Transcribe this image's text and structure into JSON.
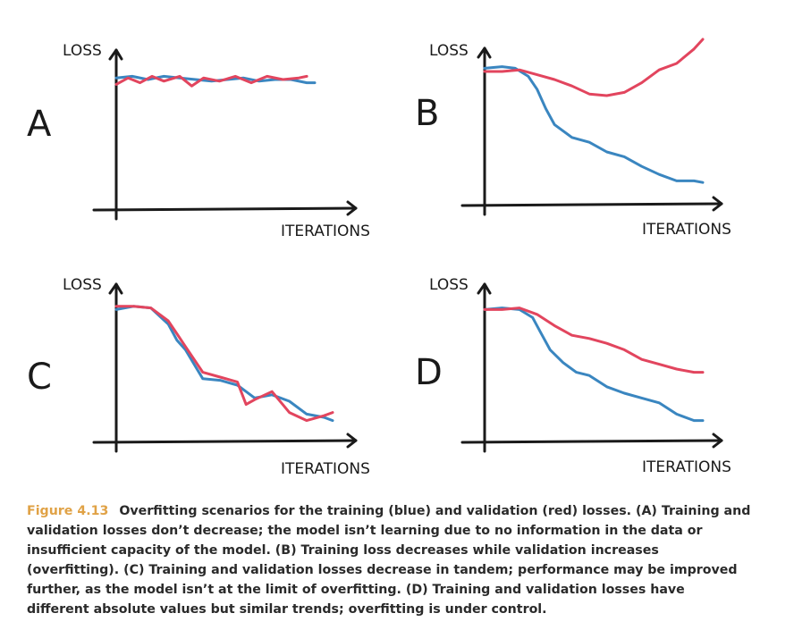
{
  "colors": {
    "training": "#3a86c0",
    "validation": "#e2455e",
    "axis": "#1a1a1a",
    "figure_number": "#e0a246"
  },
  "caption": {
    "figure_number": "Figure 4.13",
    "text": "Overfitting scenarios for the training (blue) and validation (red) losses. (A) Training and validation losses don’t decrease; the model isn’t learning due to no information in the data or insufficient capacity of the model. (B) Training loss decreases while validation increases (overfitting). (C) Training and validation losses decrease in tandem; performance may be improved further, as the model isn’t at the limit of overfitting. (D) Training and validation losses have different absolute values but similar trends; overfitting is under control."
  },
  "chart_data": [
    {
      "type": "line",
      "panel_label": "A",
      "xlabel": "ITERATIONS",
      "ylabel": "LOSS",
      "xlim": [
        0,
        100
      ],
      "ylim": [
        0,
        100
      ],
      "series": [
        {
          "role": "training",
          "color": "#3a86c0",
          "x": [
            0,
            8,
            16,
            24,
            32,
            40,
            48,
            56,
            64,
            72,
            80,
            88,
            96,
            100
          ],
          "y": [
            71,
            72,
            70,
            72,
            71,
            70,
            69,
            70,
            71,
            69,
            70,
            70,
            68,
            68
          ]
        },
        {
          "role": "validation",
          "color": "#e2455e",
          "x": [
            0,
            6,
            12,
            18,
            24,
            32,
            38,
            44,
            52,
            60,
            68,
            76,
            84,
            92,
            96
          ],
          "y": [
            67,
            71,
            68,
            72,
            69,
            72,
            66,
            71,
            69,
            72,
            68,
            72,
            70,
            71,
            72
          ]
        }
      ]
    },
    {
      "type": "line",
      "panel_label": "B",
      "xlabel": "ITERATIONS",
      "ylabel": "LOSS",
      "xlim": [
        0,
        100
      ],
      "ylim": [
        0,
        100
      ],
      "series": [
        {
          "role": "training",
          "color": "#3a86c0",
          "x": [
            0,
            8,
            14,
            20,
            24,
            28,
            32,
            36,
            40,
            48,
            56,
            64,
            72,
            80,
            88,
            96,
            100
          ],
          "y": [
            77,
            78,
            77,
            72,
            64,
            52,
            42,
            38,
            34,
            31,
            25,
            22,
            16,
            11,
            7,
            7,
            6
          ]
        },
        {
          "role": "validation",
          "color": "#e2455e",
          "x": [
            0,
            8,
            16,
            24,
            32,
            40,
            48,
            56,
            64,
            72,
            80,
            88,
            96,
            100
          ],
          "y": [
            75,
            75,
            76,
            73,
            70,
            66,
            61,
            60,
            62,
            68,
            76,
            80,
            89,
            95
          ]
        }
      ]
    },
    {
      "type": "line",
      "panel_label": "C",
      "xlabel": "ITERATIONS",
      "ylabel": "LOSS",
      "xlim": [
        0,
        100
      ],
      "ylim": [
        0,
        100
      ],
      "series": [
        {
          "role": "training",
          "color": "#3a86c0",
          "x": [
            0,
            8,
            16,
            24,
            28,
            32,
            36,
            40,
            48,
            56,
            60,
            64,
            72,
            80,
            88,
            96,
            100
          ],
          "y": [
            77,
            79,
            78,
            68,
            58,
            52,
            43,
            34,
            33,
            30,
            26,
            22,
            24,
            20,
            12,
            10,
            8
          ]
        },
        {
          "role": "validation",
          "color": "#e2455e",
          "x": [
            0,
            8,
            16,
            24,
            28,
            32,
            36,
            40,
            48,
            56,
            60,
            64,
            72,
            80,
            88,
            96,
            100
          ],
          "y": [
            79,
            79,
            78,
            70,
            62,
            54,
            46,
            38,
            35,
            32,
            18,
            21,
            26,
            13,
            8,
            11,
            13
          ]
        }
      ]
    },
    {
      "type": "line",
      "panel_label": "D",
      "xlabel": "ITERATIONS",
      "ylabel": "LOSS",
      "xlim": [
        0,
        100
      ],
      "ylim": [
        0,
        100
      ],
      "series": [
        {
          "role": "training",
          "color": "#3a86c0",
          "x": [
            0,
            8,
            16,
            22,
            26,
            30,
            36,
            42,
            48,
            56,
            64,
            72,
            80,
            88,
            96,
            100
          ],
          "y": [
            77,
            78,
            77,
            72,
            62,
            52,
            44,
            38,
            36,
            29,
            25,
            22,
            19,
            12,
            8,
            8
          ]
        },
        {
          "role": "validation",
          "color": "#e2455e",
          "x": [
            0,
            8,
            16,
            24,
            32,
            40,
            48,
            56,
            64,
            72,
            80,
            88,
            96,
            100
          ],
          "y": [
            77,
            77,
            78,
            74,
            67,
            61,
            59,
            56,
            52,
            46,
            43,
            40,
            38,
            38
          ]
        }
      ]
    }
  ]
}
